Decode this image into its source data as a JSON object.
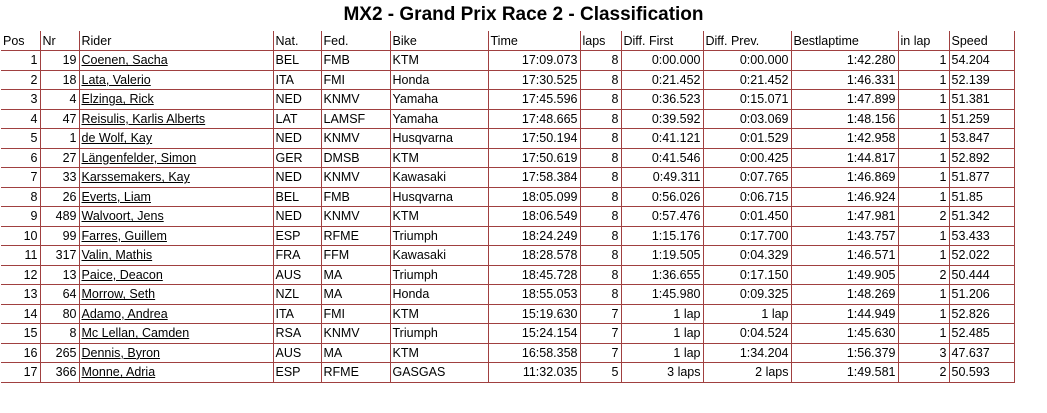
{
  "title": "MX2 - Grand Prix Race 2 - Classification",
  "columns": [
    "Pos",
    "Nr",
    "Rider",
    "Nat.",
    "Fed.",
    "Bike",
    "Time",
    "laps",
    "Diff. First",
    "Diff. Prev.",
    "Bestlaptime",
    "in lap",
    "Speed"
  ],
  "rows": [
    {
      "pos": "1",
      "nr": "19",
      "rider": "Coenen, Sacha",
      "nat": "BEL",
      "fed": "FMB",
      "bike": "KTM",
      "time": "17:09.073",
      "laps": "8",
      "diff_first": "0:00.000",
      "diff_prev": "0:00.000",
      "bestlap": "1:42.280",
      "in_lap": "1",
      "speed": "54.204"
    },
    {
      "pos": "2",
      "nr": "18",
      "rider": "Lata, Valerio",
      "nat": "ITA",
      "fed": "FMI",
      "bike": "Honda",
      "time": "17:30.525",
      "laps": "8",
      "diff_first": "0:21.452",
      "diff_prev": "0:21.452",
      "bestlap": "1:46.331",
      "in_lap": "1",
      "speed": "52.139"
    },
    {
      "pos": "3",
      "nr": "4",
      "rider": "Elzinga, Rick",
      "nat": "NED",
      "fed": "KNMV",
      "bike": "Yamaha",
      "time": "17:45.596",
      "laps": "8",
      "diff_first": "0:36.523",
      "diff_prev": "0:15.071",
      "bestlap": "1:47.899",
      "in_lap": "1",
      "speed": "51.381"
    },
    {
      "pos": "4",
      "nr": "47",
      "rider": "Reisulis, Karlis Alberts",
      "nat": "LAT",
      "fed": "LAMSF",
      "bike": "Yamaha",
      "time": "17:48.665",
      "laps": "8",
      "diff_first": "0:39.592",
      "diff_prev": "0:03.069",
      "bestlap": "1:48.156",
      "in_lap": "1",
      "speed": "51.259"
    },
    {
      "pos": "5",
      "nr": "1",
      "rider": "de Wolf, Kay",
      "nat": "NED",
      "fed": "KNMV",
      "bike": "Husqvarna",
      "time": "17:50.194",
      "laps": "8",
      "diff_first": "0:41.121",
      "diff_prev": "0:01.529",
      "bestlap": "1:42.958",
      "in_lap": "1",
      "speed": "53.847"
    },
    {
      "pos": "6",
      "nr": "27",
      "rider": "Längenfelder, Simon",
      "nat": "GER",
      "fed": "DMSB",
      "bike": "KTM",
      "time": "17:50.619",
      "laps": "8",
      "diff_first": "0:41.546",
      "diff_prev": "0:00.425",
      "bestlap": "1:44.817",
      "in_lap": "1",
      "speed": "52.892"
    },
    {
      "pos": "7",
      "nr": "33",
      "rider": "Karssemakers, Kay",
      "nat": "NED",
      "fed": "KNMV",
      "bike": "Kawasaki",
      "time": "17:58.384",
      "laps": "8",
      "diff_first": "0:49.311",
      "diff_prev": "0:07.765",
      "bestlap": "1:46.869",
      "in_lap": "1",
      "speed": "51.877"
    },
    {
      "pos": "8",
      "nr": "26",
      "rider": "Everts, Liam",
      "nat": "BEL",
      "fed": "FMB",
      "bike": "Husqvarna",
      "time": "18:05.099",
      "laps": "8",
      "diff_first": "0:56.026",
      "diff_prev": "0:06.715",
      "bestlap": "1:46.924",
      "in_lap": "1",
      "speed": "51.85"
    },
    {
      "pos": "9",
      "nr": "489",
      "rider": "Walvoort, Jens",
      "nat": "NED",
      "fed": "KNMV",
      "bike": "KTM",
      "time": "18:06.549",
      "laps": "8",
      "diff_first": "0:57.476",
      "diff_prev": "0:01.450",
      "bestlap": "1:47.981",
      "in_lap": "2",
      "speed": "51.342"
    },
    {
      "pos": "10",
      "nr": "99",
      "rider": "Farres, Guillem",
      "nat": "ESP",
      "fed": "RFME",
      "bike": "Triumph",
      "time": "18:24.249",
      "laps": "8",
      "diff_first": "1:15.176",
      "diff_prev": "0:17.700",
      "bestlap": "1:43.757",
      "in_lap": "1",
      "speed": "53.433"
    },
    {
      "pos": "11",
      "nr": "317",
      "rider": "Valin, Mathis",
      "nat": "FRA",
      "fed": "FFM",
      "bike": "Kawasaki",
      "time": "18:28.578",
      "laps": "8",
      "diff_first": "1:19.505",
      "diff_prev": "0:04.329",
      "bestlap": "1:46.571",
      "in_lap": "1",
      "speed": "52.022"
    },
    {
      "pos": "12",
      "nr": "13",
      "rider": "Paice, Deacon",
      "nat": "AUS",
      "fed": "MA",
      "bike": "Triumph",
      "time": "18:45.728",
      "laps": "8",
      "diff_first": "1:36.655",
      "diff_prev": "0:17.150",
      "bestlap": "1:49.905",
      "in_lap": "2",
      "speed": "50.444"
    },
    {
      "pos": "13",
      "nr": "64",
      "rider": "Morrow, Seth",
      "nat": "NZL",
      "fed": "MA",
      "bike": "Honda",
      "time": "18:55.053",
      "laps": "8",
      "diff_first": "1:45.980",
      "diff_prev": "0:09.325",
      "bestlap": "1:48.269",
      "in_lap": "1",
      "speed": "51.206"
    },
    {
      "pos": "14",
      "nr": "80",
      "rider": "Adamo, Andrea",
      "nat": "ITA",
      "fed": "FMI",
      "bike": "KTM",
      "time": "15:19.630",
      "laps": "7",
      "diff_first": "1 lap",
      "diff_prev": "1 lap",
      "bestlap": "1:44.949",
      "in_lap": "1",
      "speed": "52.826"
    },
    {
      "pos": "15",
      "nr": "8",
      "rider": "Mc Lellan, Camden",
      "nat": "RSA",
      "fed": "KNMV",
      "bike": "Triumph",
      "time": "15:24.154",
      "laps": "7",
      "diff_first": "1 lap",
      "diff_prev": "0:04.524",
      "bestlap": "1:45.630",
      "in_lap": "1",
      "speed": "52.485"
    },
    {
      "pos": "16",
      "nr": "265",
      "rider": "Dennis, Byron",
      "nat": "AUS",
      "fed": "MA",
      "bike": "KTM",
      "time": "16:58.358",
      "laps": "7",
      "diff_first": "1 lap",
      "diff_prev": "1:34.204",
      "bestlap": "1:56.379",
      "in_lap": "3",
      "speed": "47.637"
    },
    {
      "pos": "17",
      "nr": "366",
      "rider": "Monne, Adria",
      "nat": "ESP",
      "fed": "RFME",
      "bike": "GASGAS",
      "time": "11:32.035",
      "laps": "5",
      "diff_first": "3 laps",
      "diff_prev": "2 laps",
      "bestlap": "1:49.581",
      "in_lap": "2",
      "speed": "50.593"
    }
  ]
}
